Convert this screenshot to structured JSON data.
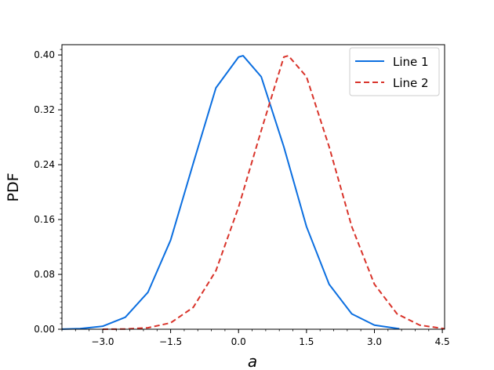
{
  "chart_data": {
    "type": "line",
    "title": "",
    "xlabel": "a",
    "ylabel": "PDF",
    "xlim": [
      -3.9,
      4.55
    ],
    "ylim": [
      0.0,
      0.415
    ],
    "x_ticks": [
      -3.0,
      -1.5,
      0.0,
      1.5,
      3.0,
      4.5
    ],
    "x_tick_labels": [
      "−3.0",
      "−1.5",
      "0.0",
      "1.5",
      "3.0",
      "4.5"
    ],
    "y_ticks": [
      0.0,
      0.08,
      0.16,
      0.24,
      0.32,
      0.4
    ],
    "y_tick_labels": [
      "0.00",
      "0.08",
      "0.16",
      "0.24",
      "0.32",
      "0.40"
    ],
    "grid": false,
    "legend_position": "top-right",
    "series": [
      {
        "name": "Line 1",
        "color": "#0c6fe0",
        "style": "solid",
        "x": [
          -3.9,
          -3.5,
          -3.0,
          -2.5,
          -2.0,
          -1.5,
          -1.0,
          -0.5,
          0.0,
          0.1,
          0.5,
          1.0,
          1.5,
          2.0,
          2.5,
          3.0,
          3.55
        ],
        "y": [
          0.0001,
          0.0009,
          0.0044,
          0.0175,
          0.054,
          0.13,
          0.242,
          0.352,
          0.397,
          0.3989,
          0.3683,
          0.266,
          0.1497,
          0.0656,
          0.0224,
          0.006,
          0.0007
        ]
      },
      {
        "name": "Line 2",
        "color": "#d9342b",
        "style": "dashed",
        "x": [
          -3.0,
          -2.5,
          -2.0,
          -1.5,
          -1.0,
          -0.5,
          0.0,
          0.5,
          1.0,
          1.1,
          1.5,
          2.0,
          2.5,
          3.0,
          3.5,
          4.0,
          4.55
        ],
        "y": [
          0.0,
          0.0003,
          0.0021,
          0.0093,
          0.0319,
          0.0853,
          0.1781,
          0.2897,
          0.397,
          0.3989,
          0.3683,
          0.2661,
          0.1497,
          0.0656,
          0.0224,
          0.006,
          0.0007
        ]
      }
    ]
  }
}
